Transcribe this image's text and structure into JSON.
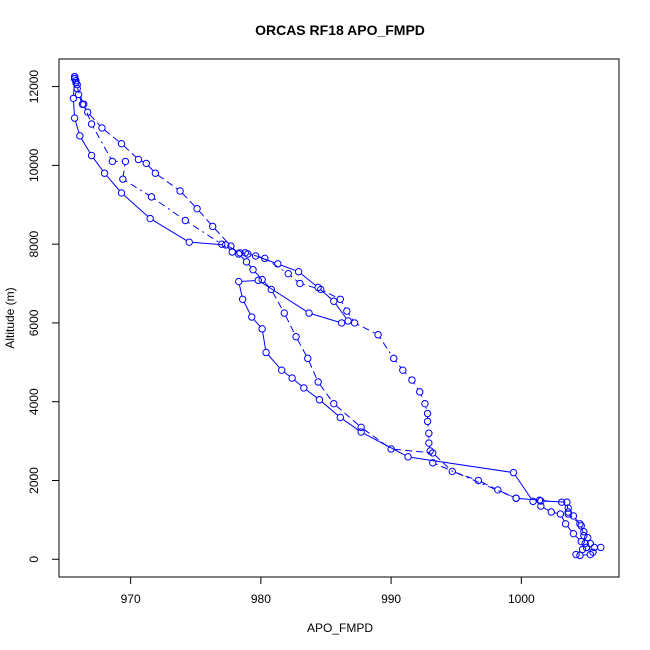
{
  "chart_data": {
    "type": "line",
    "title": "ORCAS RF18 APO_FMPD",
    "xlabel": "APO_FMPD",
    "ylabel": "Altitude (m)",
    "xlim": [
      964.5,
      1007.5
    ],
    "ylim": [
      -450,
      12700
    ],
    "xticks": [
      970,
      980,
      990,
      1000
    ],
    "yticks": [
      0,
      2000,
      4000,
      6000,
      8000,
      10000,
      12000
    ],
    "grid": false,
    "legend": "none",
    "series_color": "#0000ff",
    "series": [
      {
        "line_style": "dashed",
        "points": [
          [
            965.7,
            12250
          ],
          [
            965.7,
            12200
          ],
          [
            965.8,
            12150
          ],
          [
            965.8,
            12100
          ],
          [
            965.9,
            12050
          ],
          [
            966.0,
            11800
          ],
          [
            966.3,
            11550
          ],
          [
            966.7,
            11350
          ],
          [
            967.8,
            10950
          ],
          [
            969.3,
            10550
          ],
          [
            970.6,
            10150
          ],
          [
            971.2,
            10050
          ],
          [
            971.9,
            9800
          ],
          [
            973.8,
            9350
          ],
          [
            975.1,
            8900
          ],
          [
            976.3,
            8450
          ],
          [
            977.7,
            7950
          ],
          [
            978.3,
            7750
          ],
          [
            978.9,
            7550
          ],
          [
            979.4,
            7350
          ],
          [
            980.1,
            7100
          ],
          [
            980.8,
            6850
          ],
          [
            981.8,
            6250
          ],
          [
            982.7,
            5650
          ],
          [
            983.6,
            5100
          ],
          [
            984.4,
            4500
          ],
          [
            985.6,
            3950
          ],
          [
            987.7,
            3350
          ],
          [
            990.0,
            2800
          ],
          [
            993.2,
            2700
          ],
          [
            994.7,
            2230
          ],
          [
            996.7,
            2000
          ],
          [
            998.2,
            1760
          ],
          [
            999.6,
            1550
          ],
          [
            1001.4,
            1500
          ],
          [
            1001.5,
            1350
          ],
          [
            1002.3,
            1200
          ],
          [
            1003.0,
            1150
          ],
          [
            1003.4,
            900
          ],
          [
            1004.0,
            650
          ],
          [
            1004.6,
            450
          ],
          [
            1005.0,
            300
          ],
          [
            1005.5,
            180
          ],
          [
            1005.3,
            120
          ],
          [
            1004.5,
            100
          ]
        ]
      },
      {
        "line_style": "solid",
        "points": [
          [
            1004.2,
            120
          ],
          [
            1004.7,
            250
          ],
          [
            1004.9,
            400
          ],
          [
            1004.8,
            600
          ],
          [
            1004.6,
            850
          ],
          [
            1004.0,
            1100
          ],
          [
            1003.6,
            1200
          ],
          [
            1003.5,
            1450
          ],
          [
            1001.5,
            1480
          ],
          [
            1000.9,
            1470
          ],
          [
            999.4,
            2200
          ],
          [
            991.3,
            2600
          ],
          [
            987.7,
            3230
          ],
          [
            986.1,
            3600
          ],
          [
            984.5,
            4050
          ],
          [
            983.3,
            4350
          ],
          [
            982.4,
            4600
          ],
          [
            981.6,
            4800
          ],
          [
            980.4,
            5250
          ],
          [
            980.1,
            5850
          ],
          [
            979.3,
            6150
          ],
          [
            978.6,
            6600
          ],
          [
            978.3,
            7050
          ],
          [
            979.8,
            7080
          ],
          [
            983.7,
            6250
          ],
          [
            986.2,
            6000
          ],
          [
            986.7,
            6050
          ],
          [
            985.6,
            6550
          ],
          [
            984.4,
            6900
          ],
          [
            982.9,
            7300
          ],
          [
            981.3,
            7500
          ],
          [
            979.6,
            7700
          ],
          [
            979.0,
            7750
          ],
          [
            978.4,
            7780
          ],
          [
            977.3,
            7980
          ],
          [
            974.5,
            8050
          ],
          [
            971.5,
            8650
          ],
          [
            969.3,
            9300
          ],
          [
            968.0,
            9800
          ],
          [
            967.0,
            10250
          ],
          [
            966.1,
            10750
          ],
          [
            965.7,
            11200
          ],
          [
            965.6,
            11700
          ],
          [
            965.7,
            12200
          ]
        ]
      },
      {
        "line_style": "dotdash",
        "points": [
          [
            965.7,
            12250
          ],
          [
            965.9,
            11950
          ],
          [
            966.4,
            11550
          ],
          [
            967.0,
            11050
          ],
          [
            968.6,
            10100
          ],
          [
            969.6,
            10100
          ],
          [
            969.4,
            9650
          ],
          [
            971.6,
            9200
          ],
          [
            974.2,
            8600
          ],
          [
            977.0,
            8000
          ],
          [
            977.8,
            7800
          ],
          [
            978.8,
            7780
          ],
          [
            980.3,
            7640
          ],
          [
            982.1,
            7250
          ],
          [
            983.0,
            7000
          ],
          [
            984.6,
            6850
          ],
          [
            986.1,
            6600
          ],
          [
            986.6,
            6300
          ],
          [
            987.2,
            6000
          ],
          [
            989.0,
            5700
          ],
          [
            990.2,
            5100
          ],
          [
            990.9,
            4800
          ],
          [
            991.6,
            4550
          ],
          [
            992.2,
            4250
          ],
          [
            992.6,
            3950
          ],
          [
            992.8,
            3700
          ],
          [
            992.8,
            3500
          ],
          [
            992.9,
            3200
          ],
          [
            992.9,
            2950
          ],
          [
            993.0,
            2750
          ],
          [
            993.2,
            2450
          ],
          [
            999.6,
            1550
          ],
          [
            1003.1,
            1450
          ],
          [
            1003.6,
            1300
          ],
          [
            1003.6,
            1150
          ],
          [
            1004.5,
            900
          ],
          [
            1004.8,
            700
          ],
          [
            1005.1,
            550
          ],
          [
            1005.3,
            400
          ],
          [
            1005.6,
            300
          ],
          [
            1006.1,
            300
          ]
        ]
      }
    ]
  }
}
